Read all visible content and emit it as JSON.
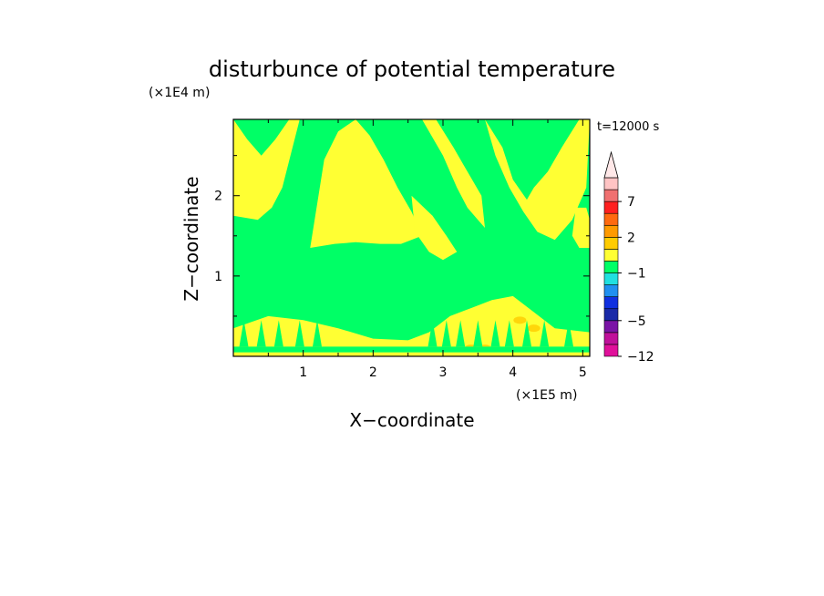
{
  "chart_data": {
    "type": "heatmap",
    "title": "disturbunce of potential temperature",
    "xlabel": "X−coordinate",
    "ylabel": "Z−coordinate",
    "x_unit": "(×1E5 m)",
    "y_unit": "(×1E4 m)",
    "time_label": "t=12000 s",
    "xlim": [
      0,
      5.1
    ],
    "ylim": [
      0,
      2.95
    ],
    "x_ticks": [
      1,
      2,
      3,
      4,
      5
    ],
    "x_tick_labels": [
      "1",
      "2",
      "3",
      "4",
      "5"
    ],
    "y_ticks": [
      1,
      2
    ],
    "y_tick_labels": [
      "1",
      "2"
    ],
    "colorbar": {
      "levels": [
        {
          "lo": -12,
          "hi": -10,
          "color": "#e0109a"
        },
        {
          "lo": -10,
          "hi": -8,
          "color": "#c0109a"
        },
        {
          "lo": -8,
          "hi": -6,
          "color": "#7a14a6"
        },
        {
          "lo": -6,
          "hi": -4,
          "color": "#1a2aa8"
        },
        {
          "lo": -4,
          "hi": -3,
          "color": "#1030e0"
        },
        {
          "lo": -3,
          "hi": -2,
          "color": "#2090f0"
        },
        {
          "lo": -2,
          "hi": -1,
          "color": "#20e0e0"
        },
        {
          "lo": -1,
          "hi": 0,
          "color": "#00ff66"
        },
        {
          "lo": 0,
          "hi": 1,
          "color": "#ffff33"
        },
        {
          "lo": 1,
          "hi": 2,
          "color": "#ffcc00"
        },
        {
          "lo": 2,
          "hi": 3,
          "color": "#ff9a00"
        },
        {
          "lo": 3,
          "hi": 5,
          "color": "#ff6a10"
        },
        {
          "lo": 5,
          "hi": 7,
          "color": "#ff2020"
        },
        {
          "lo": 7,
          "hi": 9,
          "color": "#f07070"
        },
        {
          "lo": 9,
          "hi": 11,
          "color": "#ffc4c4"
        }
      ],
      "tick_labels": [
        "7",
        "2",
        "−1",
        "−5",
        "−12"
      ],
      "tick_values": [
        7,
        2,
        -1,
        -5,
        -12
      ],
      "extend": "max",
      "extend_color": "#ffe8e8"
    },
    "fields": {
      "background_value": -0.5,
      "regions": [
        {
          "name": "left-upper-plume",
          "value": 0.5,
          "x": [
            0.0,
            0.0,
            0.35,
            0.55,
            0.7,
            0.95,
            0.8,
            0.6,
            0.4,
            0.2,
            0.0
          ],
          "z": [
            2.95,
            1.75,
            1.7,
            1.85,
            2.1,
            2.95,
            2.95,
            2.7,
            2.5,
            2.7,
            2.95
          ]
        },
        {
          "name": "central-dome",
          "value": 0.5,
          "x": [
            1.1,
            1.45,
            1.75,
            2.1,
            2.4,
            2.7,
            2.55,
            2.35,
            2.15,
            1.95,
            1.75,
            1.5,
            1.3,
            1.1
          ],
          "z": [
            1.35,
            1.4,
            1.42,
            1.4,
            1.4,
            1.5,
            1.8,
            2.1,
            2.45,
            2.75,
            2.95,
            2.8,
            2.45,
            1.35
          ]
        },
        {
          "name": "right-arch-left",
          "value": 0.5,
          "x": [
            2.4,
            2.7,
            3.0,
            3.2,
            3.35,
            3.5,
            3.6,
            3.55,
            3.35,
            3.15,
            2.9,
            2.7,
            2.5,
            2.4
          ],
          "z": [
            2.95,
            2.95,
            2.5,
            2.1,
            1.85,
            1.7,
            1.6,
            2.0,
            2.3,
            2.6,
            2.95,
            2.95,
            2.95,
            2.95
          ]
        },
        {
          "name": "right-arch-inner",
          "value": 0.5,
          "x": [
            2.55,
            2.85,
            3.05,
            3.2,
            3.0,
            2.8,
            2.6,
            2.55
          ],
          "z": [
            2.0,
            1.75,
            1.5,
            1.3,
            1.2,
            1.3,
            1.55,
            2.0
          ]
        },
        {
          "name": "right-arch-right",
          "value": 0.5,
          "x": [
            3.6,
            3.75,
            3.95,
            4.15,
            4.35,
            4.6,
            4.85,
            5.05,
            5.1,
            4.95,
            4.7,
            4.5,
            4.3,
            4.2,
            4.0,
            3.85,
            3.6
          ],
          "z": [
            2.95,
            2.5,
            2.1,
            1.8,
            1.55,
            1.45,
            1.7,
            2.1,
            2.95,
            2.95,
            2.6,
            2.3,
            2.1,
            1.95,
            2.2,
            2.6,
            2.95
          ]
        },
        {
          "name": "right-edge-lobe",
          "value": 0.5,
          "x": [
            4.9,
            5.05,
            5.1,
            5.1,
            4.95,
            4.85,
            4.9
          ],
          "z": [
            1.85,
            1.85,
            1.7,
            1.35,
            1.35,
            1.5,
            1.85
          ]
        },
        {
          "name": "surface-layer",
          "value": 0.5,
          "x": [
            0.0,
            5.1,
            5.1,
            4.6,
            4.3,
            4.0,
            3.7,
            3.4,
            3.1,
            2.8,
            2.5,
            2.0,
            1.5,
            1.0,
            0.5,
            0.0
          ],
          "z": [
            0.0,
            0.0,
            0.3,
            0.35,
            0.55,
            0.75,
            0.7,
            0.6,
            0.5,
            0.3,
            0.2,
            0.22,
            0.35,
            0.45,
            0.5,
            0.35
          ]
        },
        {
          "name": "surface-warm-spots",
          "value": 1.5,
          "x": [
            3.4,
            3.6,
            4.1,
            4.3
          ],
          "z": [
            0.1,
            0.1,
            0.45,
            0.35
          ]
        },
        {
          "name": "ground-strip",
          "value": -0.5,
          "x": [
            0.0,
            5.1,
            5.1,
            0.0
          ],
          "z": [
            0.05,
            0.05,
            0.12,
            0.12
          ]
        }
      ]
    }
  }
}
